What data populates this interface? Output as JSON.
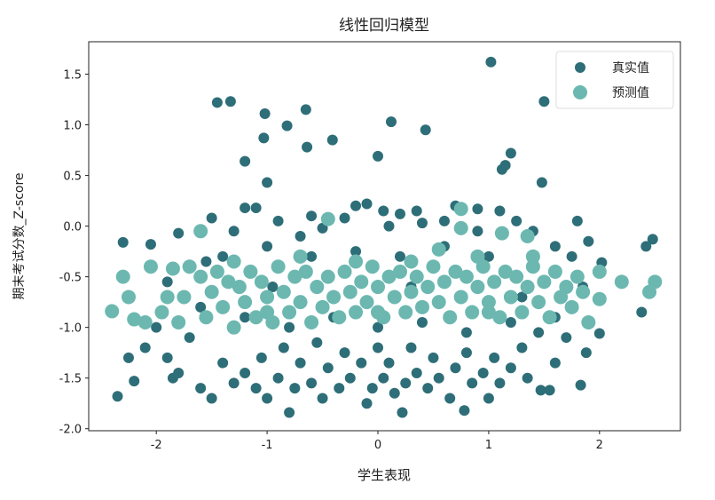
{
  "chart_data": {
    "type": "scatter",
    "title": "线性回归模型",
    "xlabel": "学生表现",
    "ylabel": "期末考试分数_Z-score",
    "xlim": [
      -2.61,
      2.73
    ],
    "ylim": [
      -2.02,
      1.82
    ],
    "xticks": [
      -2,
      -1,
      0,
      1,
      2
    ],
    "yticks": [
      1.5,
      1.0,
      0.5,
      0.0,
      -0.5,
      -1.0,
      -1.5,
      -2.0
    ],
    "ytick_labels": [
      "1.5",
      "1.0",
      "0.5",
      "0.0",
      "-0.5",
      "-1.0",
      "-1.5",
      "-2.0"
    ],
    "grid": false,
    "legend_position": "top-right",
    "series": [
      {
        "name": "真实值",
        "color": "#2e6e78",
        "points": [
          [
            1.02,
            1.62
          ],
          [
            -1.45,
            1.22
          ],
          [
            -1.33,
            1.23
          ],
          [
            -1.02,
            1.11
          ],
          [
            -1.03,
            0.87
          ],
          [
            -0.82,
            0.99
          ],
          [
            -0.65,
            1.15
          ],
          [
            -0.64,
            0.78
          ],
          [
            -0.41,
            0.85
          ],
          [
            0.12,
            1.03
          ],
          [
            0.43,
            0.95
          ],
          [
            1.5,
            1.23
          ],
          [
            -1.2,
            0.64
          ],
          [
            -1.0,
            0.43
          ],
          [
            0.0,
            0.69
          ],
          [
            1.2,
            0.72
          ],
          [
            1.15,
            0.6
          ],
          [
            1.12,
            0.56
          ],
          [
            1.48,
            0.43
          ],
          [
            -2.3,
            -0.16
          ],
          [
            -2.35,
            -1.68
          ],
          [
            -2.2,
            -1.53
          ],
          [
            -2.25,
            -1.3
          ],
          [
            -0.8,
            -1.84
          ],
          [
            0.22,
            -1.84
          ],
          [
            0.78,
            -1.82
          ],
          [
            -0.1,
            -1.75
          ],
          [
            2.48,
            -0.13
          ],
          [
            2.42,
            -0.2
          ],
          [
            2.38,
            -0.85
          ],
          [
            2.0,
            -1.06
          ],
          [
            1.88,
            -1.25
          ],
          [
            2.02,
            -0.36
          ],
          [
            1.83,
            -1.57
          ],
          [
            1.55,
            -1.62
          ],
          [
            1.47,
            -1.62
          ],
          [
            -2.05,
            -0.18
          ],
          [
            -1.8,
            -0.07
          ],
          [
            -1.5,
            0.08
          ],
          [
            -1.3,
            -0.05
          ],
          [
            -1.2,
            0.18
          ],
          [
            -1.1,
            0.18
          ],
          [
            -0.9,
            0.05
          ],
          [
            -0.7,
            -0.1
          ],
          [
            -0.5,
            -0.02
          ],
          [
            -0.3,
            0.08
          ],
          [
            -0.2,
            0.2
          ],
          [
            -0.1,
            0.22
          ],
          [
            0.05,
            0.15
          ],
          [
            0.2,
            0.12
          ],
          [
            0.35,
            0.15
          ],
          [
            0.4,
            0.03
          ],
          [
            0.6,
            0.05
          ],
          [
            0.7,
            0.2
          ],
          [
            0.9,
            0.17
          ],
          [
            1.1,
            0.15
          ],
          [
            1.25,
            0.05
          ],
          [
            1.4,
            -0.05
          ],
          [
            1.6,
            -0.2
          ],
          [
            1.8,
            0.05
          ],
          [
            1.9,
            -0.15
          ],
          [
            -2.1,
            -1.2
          ],
          [
            -1.9,
            -1.3
          ],
          [
            -1.85,
            -1.5
          ],
          [
            -1.8,
            -1.45
          ],
          [
            -1.6,
            -1.6
          ],
          [
            -1.5,
            -1.7
          ],
          [
            -1.7,
            -1.1
          ],
          [
            -1.4,
            -1.35
          ],
          [
            -1.3,
            -1.55
          ],
          [
            -1.2,
            -1.45
          ],
          [
            -1.1,
            -1.6
          ],
          [
            -1.05,
            -1.3
          ],
          [
            -1.0,
            -1.7
          ],
          [
            -0.9,
            -1.5
          ],
          [
            -0.85,
            -1.2
          ],
          [
            -0.75,
            -1.6
          ],
          [
            -0.7,
            -1.35
          ],
          [
            -0.6,
            -1.55
          ],
          [
            -0.55,
            -1.15
          ],
          [
            -0.5,
            -1.7
          ],
          [
            -0.45,
            -1.4
          ],
          [
            -0.35,
            -1.6
          ],
          [
            -0.3,
            -1.25
          ],
          [
            -0.25,
            -1.5
          ],
          [
            -0.15,
            -1.35
          ],
          [
            -0.05,
            -1.6
          ],
          [
            0.0,
            -1.2
          ],
          [
            0.05,
            -1.5
          ],
          [
            0.1,
            -1.35
          ],
          [
            0.15,
            -1.65
          ],
          [
            0.25,
            -1.55
          ],
          [
            0.3,
            -1.2
          ],
          [
            0.35,
            -1.45
          ],
          [
            0.45,
            -1.6
          ],
          [
            0.5,
            -1.3
          ],
          [
            0.55,
            -1.5
          ],
          [
            0.65,
            -1.7
          ],
          [
            0.7,
            -1.4
          ],
          [
            0.8,
            -1.25
          ],
          [
            0.85,
            -1.55
          ],
          [
            0.95,
            -1.45
          ],
          [
            1.0,
            -1.7
          ],
          [
            1.05,
            -1.3
          ],
          [
            1.1,
            -1.55
          ],
          [
            1.2,
            -1.4
          ],
          [
            1.3,
            -1.2
          ],
          [
            1.35,
            -1.5
          ],
          [
            1.45,
            -1.05
          ],
          [
            1.6,
            -1.35
          ],
          [
            1.7,
            -1.1
          ],
          [
            -1.6,
            -0.8
          ],
          [
            -1.4,
            -0.3
          ],
          [
            -1.2,
            -0.9
          ],
          [
            -1.0,
            -0.2
          ],
          [
            -0.8,
            -1.0
          ],
          [
            -0.6,
            -0.3
          ],
          [
            -0.4,
            -0.9
          ],
          [
            -0.2,
            -0.25
          ],
          [
            0.0,
            -1.0
          ],
          [
            0.2,
            -0.3
          ],
          [
            0.4,
            -0.95
          ],
          [
            0.6,
            -0.2
          ],
          [
            0.8,
            -1.05
          ],
          [
            1.0,
            -0.3
          ],
          [
            1.2,
            -0.95
          ],
          [
            1.4,
            -0.35
          ],
          [
            1.6,
            -0.9
          ],
          [
            1.75,
            -0.3
          ],
          [
            -1.9,
            -0.55
          ],
          [
            -2.0,
            -1.0
          ],
          [
            -0.95,
            -0.6
          ],
          [
            0.3,
            -0.6
          ],
          [
            1.3,
            -0.7
          ],
          [
            0.1,
            0.0
          ],
          [
            -0.6,
            0.1
          ],
          [
            0.9,
            -0.05
          ],
          [
            -1.55,
            -0.35
          ],
          [
            1.85,
            -0.6
          ]
        ]
      },
      {
        "name": "预测值",
        "color": "#6cb8b0",
        "points": [
          [
            -2.4,
            -0.84
          ],
          [
            -2.3,
            -0.5
          ],
          [
            -2.25,
            -0.7
          ],
          [
            -2.2,
            -0.92
          ],
          [
            -2.1,
            -0.95
          ],
          [
            -2.05,
            -0.4
          ],
          [
            -1.95,
            -0.85
          ],
          [
            -1.85,
            -0.42
          ],
          [
            -1.8,
            -0.95
          ],
          [
            -1.75,
            -0.7
          ],
          [
            -1.7,
            -0.4
          ],
          [
            -1.6,
            -0.05
          ],
          [
            -1.6,
            -0.5
          ],
          [
            -1.55,
            -0.9
          ],
          [
            -1.5,
            -0.65
          ],
          [
            -1.45,
            -0.45
          ],
          [
            -1.4,
            -0.8
          ],
          [
            -1.35,
            -0.55
          ],
          [
            -1.3,
            -1.0
          ],
          [
            -1.25,
            -0.6
          ],
          [
            -1.2,
            -0.75
          ],
          [
            -1.15,
            -0.45
          ],
          [
            -1.1,
            -0.9
          ],
          [
            -1.05,
            -0.55
          ],
          [
            -1.0,
            -0.7
          ],
          [
            -0.95,
            -0.95
          ],
          [
            -0.9,
            -0.4
          ],
          [
            -0.85,
            -0.65
          ],
          [
            -0.8,
            -0.85
          ],
          [
            -0.75,
            -0.5
          ],
          [
            -0.7,
            -0.75
          ],
          [
            -0.65,
            -0.45
          ],
          [
            -0.6,
            -0.95
          ],
          [
            -0.55,
            -0.6
          ],
          [
            -0.5,
            -0.8
          ],
          [
            -0.45,
            0.07
          ],
          [
            -0.45,
            -0.5
          ],
          [
            -0.4,
            -0.7
          ],
          [
            -0.35,
            -0.9
          ],
          [
            -0.3,
            -0.45
          ],
          [
            -0.25,
            -0.65
          ],
          [
            -0.2,
            -0.85
          ],
          [
            -0.15,
            -0.55
          ],
          [
            -0.1,
            -0.75
          ],
          [
            -0.05,
            -0.4
          ],
          [
            0.0,
            -0.6
          ],
          [
            0.05,
            -0.9
          ],
          [
            0.1,
            -0.5
          ],
          [
            0.15,
            -0.7
          ],
          [
            0.2,
            -0.45
          ],
          [
            0.25,
            -0.85
          ],
          [
            0.3,
            -0.65
          ],
          [
            0.35,
            -0.5
          ],
          [
            0.4,
            -0.8
          ],
          [
            0.45,
            -0.6
          ],
          [
            0.5,
            -0.4
          ],
          [
            0.55,
            -0.23
          ],
          [
            0.55,
            -0.75
          ],
          [
            0.6,
            -0.55
          ],
          [
            0.65,
            -0.9
          ],
          [
            0.7,
            -0.45
          ],
          [
            0.75,
            -0.02
          ],
          [
            0.75,
            0.17
          ],
          [
            0.75,
            -0.7
          ],
          [
            0.8,
            -0.5
          ],
          [
            0.85,
            -0.85
          ],
          [
            0.9,
            -0.6
          ],
          [
            0.95,
            -0.4
          ],
          [
            1.0,
            -0.75
          ],
          [
            1.05,
            -0.55
          ],
          [
            1.1,
            -0.9
          ],
          [
            1.12,
            -0.07
          ],
          [
            1.15,
            -0.45
          ],
          [
            1.2,
            -0.7
          ],
          [
            1.25,
            -0.5
          ],
          [
            1.3,
            -0.85
          ],
          [
            1.35,
            -0.1
          ],
          [
            1.35,
            -0.6
          ],
          [
            1.4,
            -0.4
          ],
          [
            1.45,
            -0.75
          ],
          [
            1.5,
            -0.55
          ],
          [
            1.55,
            -0.9
          ],
          [
            1.6,
            -0.45
          ],
          [
            1.65,
            -0.7
          ],
          [
            1.7,
            -0.6
          ],
          [
            1.75,
            -0.8
          ],
          [
            1.8,
            -0.5
          ],
          [
            1.85,
            -0.65
          ],
          [
            1.9,
            -0.95
          ],
          [
            2.0,
            -0.45
          ],
          [
            2.0,
            -0.72
          ],
          [
            2.2,
            -0.55
          ],
          [
            2.45,
            -0.65
          ],
          [
            2.5,
            -0.55
          ],
          [
            -1.9,
            -0.7
          ],
          [
            -1.3,
            -0.35
          ],
          [
            -0.7,
            -0.3
          ],
          [
            -0.2,
            -0.35
          ],
          [
            0.3,
            -0.35
          ],
          [
            0.9,
            -0.3
          ],
          [
            1.4,
            -0.3
          ],
          [
            -1.0,
            -0.85
          ],
          [
            0.0,
            -0.85
          ],
          [
            1.0,
            -0.85
          ]
        ]
      }
    ]
  }
}
